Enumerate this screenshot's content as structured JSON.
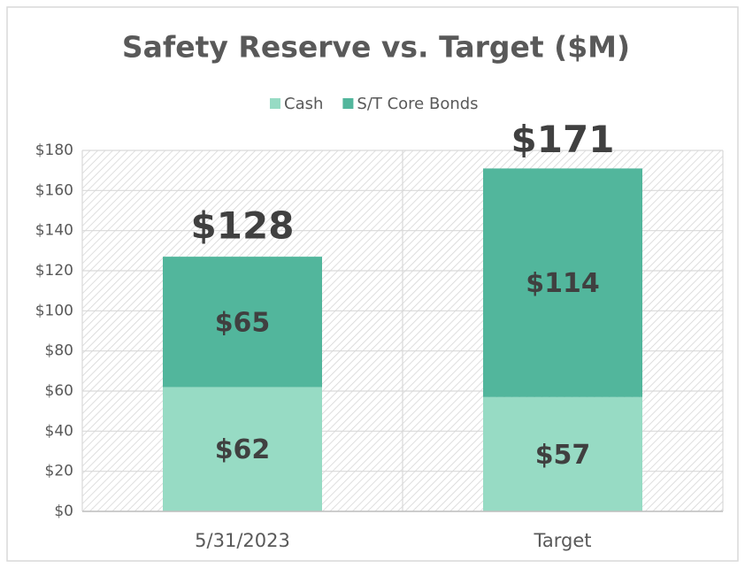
{
  "chart_data": {
    "type": "stacked_bar",
    "title": "Safety Reserve vs. Target ($M)",
    "categories": [
      "5/31/2023",
      "Target"
    ],
    "series": [
      {
        "name": "Cash",
        "color": "#97dbc4",
        "values": [
          62,
          57
        ],
        "value_labels": [
          "$62",
          "$57"
        ]
      },
      {
        "name": "S/T Core Bonds",
        "color": "#52b69c",
        "values": [
          65,
          114
        ],
        "value_labels": [
          "$65",
          "$114"
        ]
      }
    ],
    "totals": {
      "values": [
        128,
        171
      ],
      "value_labels": [
        "$128",
        "$171"
      ]
    },
    "ylim": [
      0,
      180
    ],
    "yticks": [
      {
        "value": 0,
        "label": "$0"
      },
      {
        "value": 20,
        "label": "$20"
      },
      {
        "value": 40,
        "label": "$40"
      },
      {
        "value": 60,
        "label": "$60"
      },
      {
        "value": 80,
        "label": "$80"
      },
      {
        "value": 100,
        "label": "$100"
      },
      {
        "value": 120,
        "label": "$120"
      },
      {
        "value": 140,
        "label": "$140"
      },
      {
        "value": 160,
        "label": "$160"
      },
      {
        "value": 180,
        "label": "$180"
      }
    ],
    "grid": true,
    "legend": "top"
  }
}
